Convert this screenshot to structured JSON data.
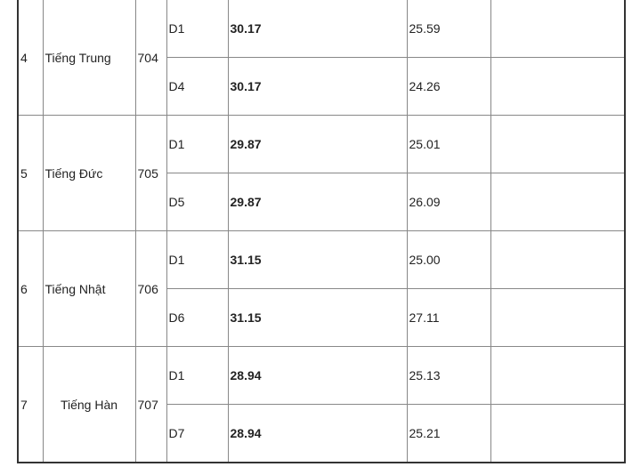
{
  "rows": [
    {
      "no": "4",
      "name": "Tiếng Trung",
      "code": "704",
      "subs": [
        {
          "block": "D1",
          "score": "30.17",
          "prev": "25.59",
          "note": ""
        },
        {
          "block": "D4",
          "score": "30.17",
          "prev": "24.26",
          "note": ""
        }
      ]
    },
    {
      "no": "5",
      "name": "Tiếng Đức",
      "code": "705",
      "subs": [
        {
          "block": "D1",
          "score": "29.87",
          "prev": "25.01",
          "note": ""
        },
        {
          "block": "D5",
          "score": "29.87",
          "prev": "26.09",
          "note": ""
        }
      ]
    },
    {
      "no": "6",
      "name": "Tiếng Nhật",
      "code": "706",
      "subs": [
        {
          "block": "D1",
          "score": "31.15",
          "prev": "25.00",
          "note": ""
        },
        {
          "block": "D6",
          "score": "31.15",
          "prev": "27.11",
          "note": ""
        }
      ]
    },
    {
      "no": "7",
      "name": "Tiếng Hàn",
      "code": "707",
      "subs": [
        {
          "block": "D1",
          "score": "28.94",
          "prev": "25.13",
          "note": ""
        },
        {
          "block": "D7",
          "score": "28.94",
          "prev": "25.21",
          "note": ""
        }
      ]
    }
  ]
}
